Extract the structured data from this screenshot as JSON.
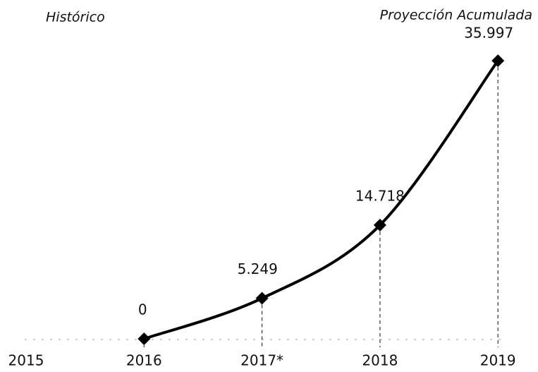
{
  "chart_data": {
    "type": "line",
    "annotations": [
      "Histórico",
      "Proyección Acumulada"
    ],
    "categories": [
      "2015",
      "2016",
      "2017*",
      "2018",
      "2019"
    ],
    "values": [
      null,
      0,
      5249,
      14718,
      35997
    ],
    "value_labels": [
      null,
      "0",
      "5.249",
      "14.718",
      "35.997"
    ],
    "color": "#000000",
    "smooth": true,
    "drop_lines": true
  }
}
